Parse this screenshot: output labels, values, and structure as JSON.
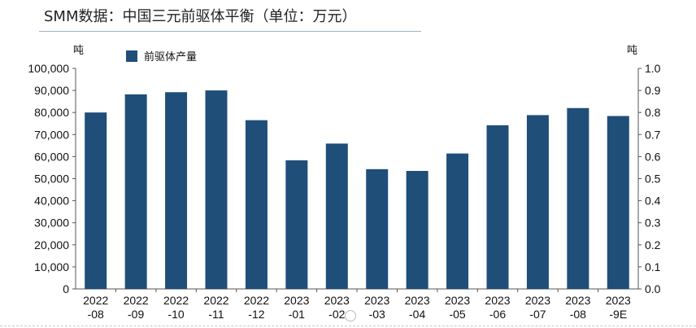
{
  "title": "SMM数据：中国三元前驱体平衡（单位：万元）",
  "colors": {
    "bar": "#1f4e79",
    "axis": "#555555",
    "rule": "#9fb3c8"
  },
  "chart_data": {
    "type": "bar",
    "categories": [
      [
        "2022",
        "-08"
      ],
      [
        "2022",
        "-09"
      ],
      [
        "2022",
        "-10"
      ],
      [
        "2022",
        "-11"
      ],
      [
        "2022",
        "-12"
      ],
      [
        "2023",
        "-01"
      ],
      [
        "2023",
        "-02"
      ],
      [
        "2023",
        "-03"
      ],
      [
        "2023",
        "-04"
      ],
      [
        "2023",
        "-05"
      ],
      [
        "2023",
        "-06"
      ],
      [
        "2023",
        "-07"
      ],
      [
        "2023",
        "-08"
      ],
      [
        "2023",
        "-9E"
      ]
    ],
    "series": [
      {
        "name": "前驱体产量",
        "values": [
          80000,
          88200,
          89200,
          90000,
          76500,
          58300,
          65900,
          54300,
          53500,
          61400,
          74200,
          78800,
          82000,
          78400
        ]
      }
    ],
    "left_axis": {
      "unit": "吨",
      "min": 0,
      "max": 100000,
      "ticks": [
        "0",
        "10,000",
        "20,000",
        "30,000",
        "40,000",
        "50,000",
        "60,000",
        "70,000",
        "80,000",
        "90,000",
        "100,000"
      ]
    },
    "right_axis": {
      "unit": "吨",
      "min": 0,
      "max": 1,
      "ticks": [
        "0.0",
        "0.1",
        "0.2",
        "0.3",
        "0.4",
        "0.5",
        "0.6",
        "0.7",
        "0.8",
        "0.9",
        "1.0"
      ]
    },
    "legend": "top-left",
    "grid": false
  }
}
